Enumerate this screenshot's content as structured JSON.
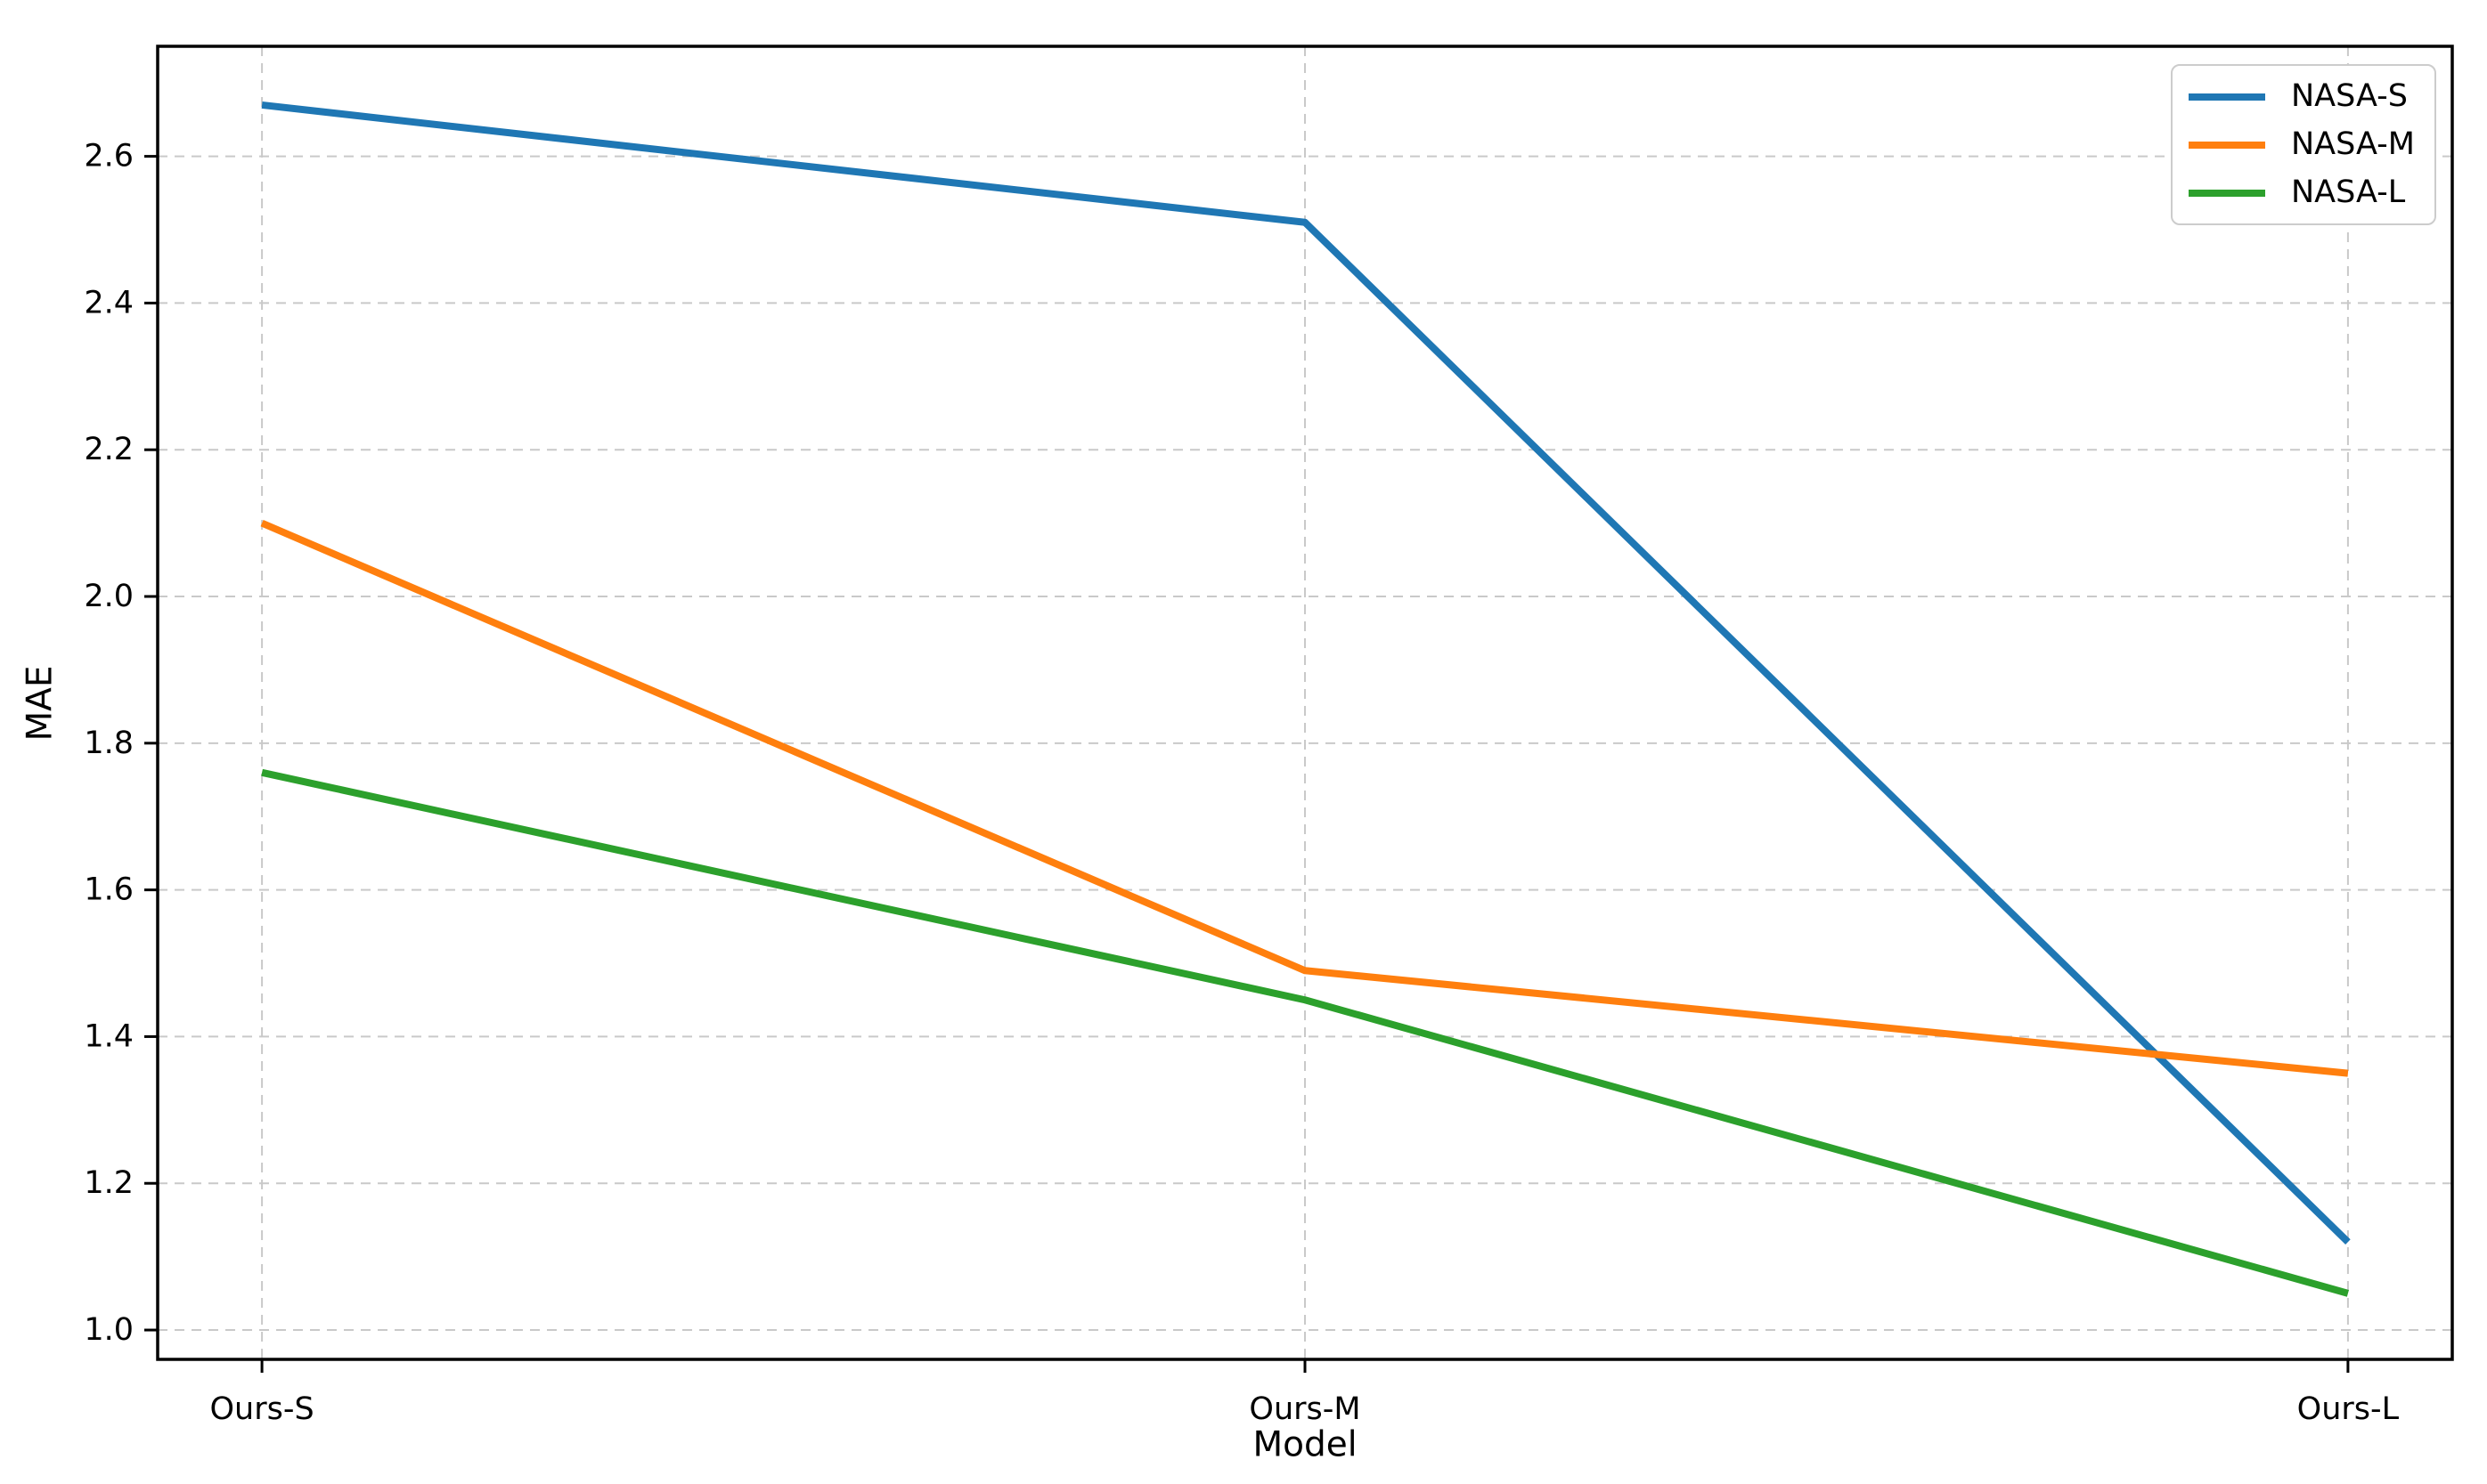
{
  "chart_data": {
    "type": "line",
    "xlabel": "Model",
    "ylabel": "MAE",
    "categories": [
      "Ours-S",
      "Ours-M",
      "Ours-L"
    ],
    "series": [
      {
        "name": "NASA-S",
        "color": "#1f77b4",
        "values": [
          2.67,
          2.51,
          1.12
        ]
      },
      {
        "name": "NASA-M",
        "color": "#ff7f0e",
        "values": [
          2.1,
          1.49,
          1.35
        ]
      },
      {
        "name": "NASA-L",
        "color": "#2ca02c",
        "values": [
          1.76,
          1.45,
          1.05
        ]
      }
    ],
    "ylim": [
      0.96,
      2.75
    ],
    "yticks": [
      1.0,
      1.2,
      1.4,
      1.6,
      1.8,
      2.0,
      2.2,
      2.4,
      2.6
    ],
    "grid": true,
    "grid_style": "dashed",
    "grid_color": "#c9c9c9",
    "legend_position": "upper right"
  }
}
